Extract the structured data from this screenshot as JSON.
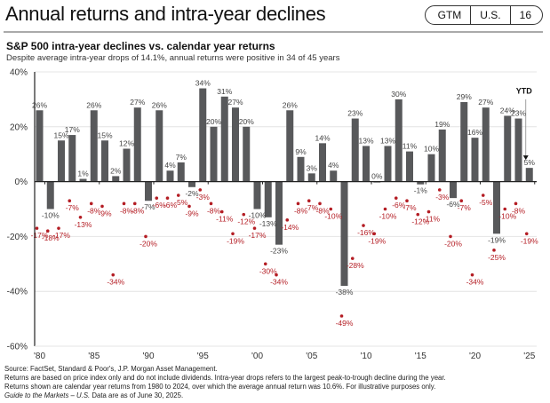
{
  "header": {
    "title": "Annual returns and intra-year declines",
    "badge": [
      "GTM",
      "U.S.",
      "16"
    ]
  },
  "chart_data": {
    "type": "bar",
    "title": "S&P 500 intra-year declines vs. calendar year returns",
    "subtitle": "Despite average intra-year drops of 14.1%, annual returns were positive in 34 of 45 years",
    "xlabel": "",
    "ylabel": "",
    "ylim": [
      -60,
      40
    ],
    "yticks": [
      "40%",
      "20%",
      "0%",
      "-20%",
      "-40%",
      "-60%"
    ],
    "ytick_values": [
      40,
      20,
      0,
      -20,
      -40,
      -60
    ],
    "xticks": [
      "'80",
      "'85",
      "'90",
      "'95",
      "'00",
      "'05",
      "'10",
      "'15",
      "'20",
      "'25"
    ],
    "xtick_years": [
      1980,
      1985,
      1990,
      1995,
      2000,
      2005,
      2010,
      2015,
      2020,
      2025
    ],
    "grid": true,
    "years": [
      1980,
      1981,
      1982,
      1983,
      1984,
      1985,
      1986,
      1987,
      1988,
      1989,
      1990,
      1991,
      1992,
      1993,
      1994,
      1995,
      1996,
      1997,
      1998,
      1999,
      2000,
      2001,
      2002,
      2003,
      2004,
      2005,
      2006,
      2007,
      2008,
      2009,
      2010,
      2011,
      2012,
      2013,
      2014,
      2015,
      2016,
      2017,
      2018,
      2019,
      2020,
      2021,
      2022,
      2023,
      2024,
      2025
    ],
    "series": [
      {
        "name": "Calendar year return",
        "kind": "bar",
        "color": "#58595b",
        "values": [
          26,
          -10,
          15,
          17,
          1,
          26,
          15,
          2,
          12,
          27,
          -7,
          26,
          4,
          7,
          -2,
          34,
          20,
          31,
          27,
          20,
          -10,
          -13,
          -23,
          26,
          9,
          3,
          14,
          4,
          -38,
          23,
          13,
          0,
          13,
          30,
          11,
          -1,
          10,
          19,
          -6,
          29,
          16,
          27,
          -19,
          24,
          23,
          5
        ]
      },
      {
        "name": "Intra-year decline",
        "kind": "scatter",
        "color": "#b41d24",
        "values": [
          -17,
          -18,
          -17,
          -7,
          -13,
          -8,
          -9,
          -34,
          -8,
          -8,
          -20,
          -6,
          -6,
          -5,
          -9,
          -3,
          -8,
          -11,
          -19,
          -12,
          -17,
          -30,
          -34,
          -14,
          -8,
          -7,
          -8,
          -10,
          -49,
          -28,
          -16,
          -19,
          -10,
          -6,
          -7,
          -12,
          -11,
          -3,
          -20,
          -7,
          -34,
          -5,
          -25,
          -10,
          -8,
          -19
        ]
      }
    ],
    "annotations": [
      {
        "text": "YTD",
        "year": 2025
      }
    ]
  },
  "footnote": {
    "lines": [
      "Source: FactSet, Standard & Poor's, J.P. Morgan Asset Management.",
      "Returns are based on price index only and do not include dividends. Intra-year drops refers to the largest peak-to-trough decline during the year.",
      "Returns shown are calendar year returns from 1980 to 2024, over which the average annual return was 10.6%. For illustrative purposes only."
    ],
    "italic_part": "Guide to the Markets – U.S.",
    "last_line_rest": " Data are as of June 30, 2025."
  }
}
